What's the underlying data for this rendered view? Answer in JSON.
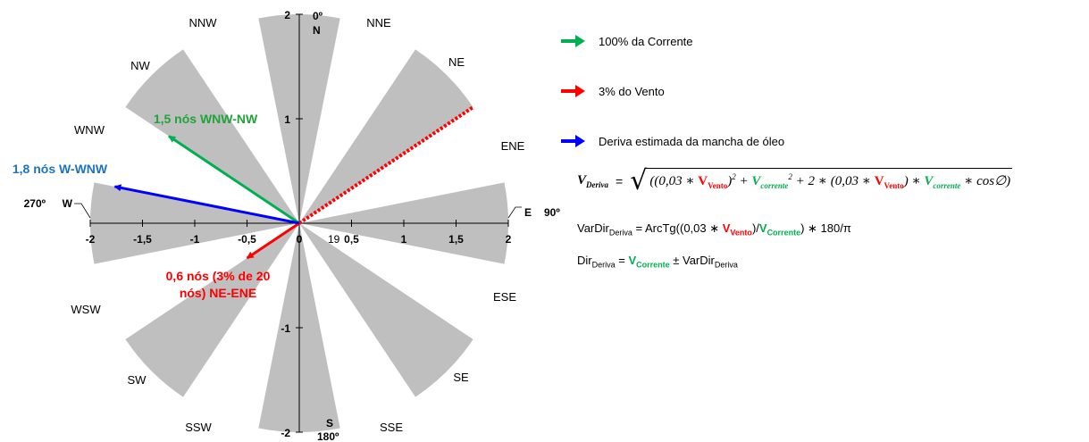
{
  "chart_data": {
    "type": "polar-vector",
    "axis_x": {
      "ticks": [
        "-2",
        "-1,5",
        "-1",
        "-0,5",
        "0",
        "0,5",
        "1",
        "1,5",
        "2"
      ],
      "values": [
        -2,
        -1.5,
        -1,
        -0.5,
        0,
        0.5,
        1,
        1.5,
        2
      ],
      "range": [
        -2,
        2
      ]
    },
    "axis_y": {
      "ticks": [
        "2",
        "1",
        "0",
        "-1",
        "-2"
      ],
      "values": [
        2,
        1,
        0,
        -1,
        -2
      ],
      "range": [
        -2,
        2
      ]
    },
    "extra_tick": "19",
    "directions": [
      "NNW",
      "NNE",
      "NW",
      "NE",
      "WNW",
      "ENE",
      "WSW",
      "ESE",
      "SW",
      "SE",
      "SSW",
      "SSE"
    ],
    "cardinals": [
      {
        "deg": "0º",
        "letter": "N"
      },
      {
        "deg": "90º",
        "letter": "E"
      },
      {
        "deg": "180º",
        "letter": "S"
      },
      {
        "deg": "270º",
        "letter": "W"
      }
    ],
    "sectors_deg": [
      0,
      45,
      90,
      135,
      180,
      225,
      270,
      315
    ],
    "sector_half_width_deg": 11.25,
    "sector_radius": 2,
    "vectors": [
      {
        "name": "100% da Corrente",
        "color": "#00b050",
        "bearing_deg": 303.75,
        "magnitude": 1.5,
        "label": "1,5 nós WNW-NW"
      },
      {
        "name": "3% do Vento",
        "color": "#ff0000",
        "bearing_deg": 236.25,
        "magnitude": 0.6,
        "label_line1": "0,6 nós (3% de 20",
        "label_line2": "nós) NE-ENE"
      },
      {
        "name": "Deriva estimada da mancha de óleo",
        "color": "#0000ff",
        "bearing_deg": 281.25,
        "magnitude": 1.8,
        "label": "1,8 nós W-WNW"
      }
    ],
    "wind_source_bearing_deg": 56.25,
    "wind_source_length": 2.0,
    "label_colors": {
      "green": "#22a33a",
      "red": "#ff0000",
      "blue": "#1e73be"
    },
    "sector_color": "#bfbfbf"
  },
  "legend": {
    "corrente": "100% da Corrente",
    "vento": "3% do Vento",
    "deriva": "Deriva estimada da mancha de óleo"
  },
  "formulas": {
    "v_deriva": "V",
    "v_deriva_sub": "Deriva",
    "eq": "=",
    "part1": "((0,03 ∗ ",
    "v_vento": "V",
    "vento_sub": "Vento",
    "part2": ")",
    "sq": "2",
    "plus": " + ",
    "v_corrente": "V",
    "corrente_sub": "corrente",
    "part3": " + 2 ∗ (0,03 ∗ ",
    "part4": ") ∗ ",
    "part5": " ∗ cos∅)",
    "vardir_name": "VarDir",
    "vardir_sub": "Deriva",
    "vardir_rhs1": " = ArcTg((0,03 ∗ ",
    "vardir_rhs2": ")/",
    "vardir_corr_sub": "Corrente",
    "vardir_rhs3": ") ∗ 180/π",
    "dir_name": "Dir",
    "dir_sub": "Deriva",
    "dir_rhs1": " = ",
    "dir_rhs2": " ± VarDir",
    "dir_rhs2_sub": "Deriva"
  }
}
